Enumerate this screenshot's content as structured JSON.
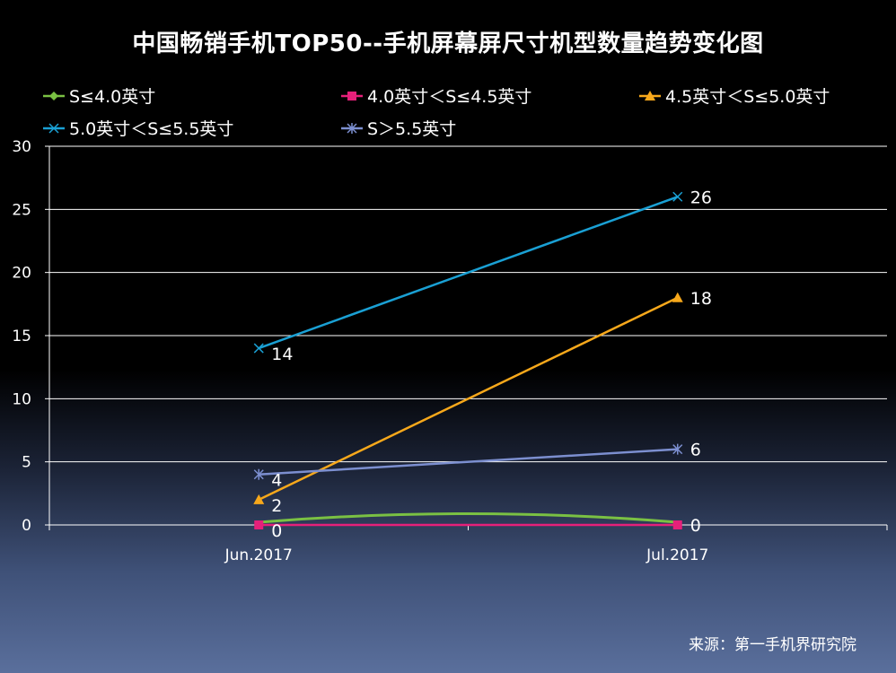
{
  "chart_data": {
    "type": "line",
    "title": "中国畅销手机TOP50--手机屏幕屏尺寸机型数量趋势变化图",
    "categories": [
      "Jun.2017",
      "Jul.2017"
    ],
    "ylim": [
      0,
      30
    ],
    "yticks": [
      "0",
      "5",
      "10",
      "15",
      "20",
      "25",
      "30"
    ],
    "legend_position": "top",
    "grid": true,
    "series": [
      {
        "name": "S≤4.0英寸",
        "values": [
          0,
          0
        ],
        "color": "#7ac143",
        "marker": "diamond",
        "labels": [
          "",
          ""
        ]
      },
      {
        "name": "4.0英寸＜S≤4.5英寸",
        "values": [
          0,
          0
        ],
        "color": "#e6207a",
        "marker": "square",
        "labels": [
          "0",
          "0"
        ]
      },
      {
        "name": "4.5英寸＜S≤5.0英寸",
        "values": [
          2,
          18
        ],
        "color": "#f7a81b",
        "marker": "triangle",
        "labels": [
          "2",
          "18"
        ]
      },
      {
        "name": "5.0英寸＜S≤5.5英寸",
        "values": [
          14,
          26
        ],
        "color": "#1aa0d4",
        "marker": "x",
        "labels": [
          "14",
          "26"
        ]
      },
      {
        "name": "S＞5.5英寸",
        "values": [
          4,
          6
        ],
        "color": "#7c8fd0",
        "marker": "star",
        "labels": [
          "4",
          "6"
        ]
      }
    ]
  },
  "source": "来源：第一手机界研究院"
}
